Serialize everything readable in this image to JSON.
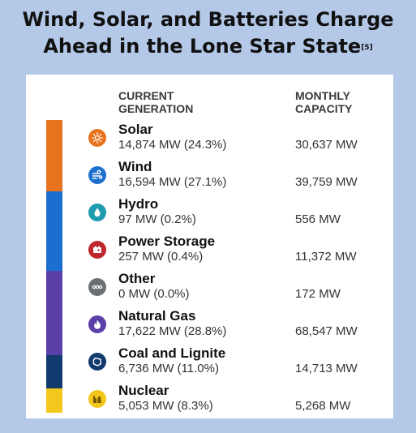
{
  "title": {
    "line1": "Wind, Solar, and Batteries Charge",
    "line2": "Ahead in the Lone Star State",
    "footnote": "[5]"
  },
  "headers": {
    "generation": "CURRENT\nGENERATION",
    "capacity": "MONTHLY\nCAPACITY"
  },
  "sources": [
    {
      "name": "Solar",
      "generation": "14,874 MW (24.3%)",
      "capacity": "30,637 MW",
      "icon": "sun-icon",
      "icon_color": "#e8731f"
    },
    {
      "name": "Wind",
      "generation": "16,594 MW (27.1%)",
      "capacity": "39,759 MW",
      "icon": "wind-icon",
      "icon_color": "#1c6fcf"
    },
    {
      "name": "Hydro",
      "generation": "97 MW (0.2%)",
      "capacity": "556 MW",
      "icon": "water-drop-icon",
      "icon_color": "#1f9bb0"
    },
    {
      "name": "Power Storage",
      "generation": "257 MW (0.4%)",
      "capacity": "11,372 MW",
      "icon": "battery-icon",
      "icon_color": "#c0272d"
    },
    {
      "name": "Other",
      "generation": "0 MW (0.0%)",
      "capacity": "172 MW",
      "icon": "dots-icon",
      "icon_color": "#6b6e73"
    },
    {
      "name": "Natural Gas",
      "generation": "17,622 MW (28.8%)",
      "capacity": "68,547 MW",
      "icon": "flame-icon",
      "icon_color": "#5b3fa8"
    },
    {
      "name": "Coal and Lignite",
      "generation": "6,736 MW (11.0%)",
      "capacity": "14,713 MW",
      "icon": "coal-icon",
      "icon_color": "#123a6e"
    },
    {
      "name": "Nuclear",
      "generation": "5,053 MW (8.3%)",
      "capacity": "5,268 MW",
      "icon": "nuclear-plant-icon",
      "icon_color": "#f4c71c"
    }
  ],
  "mix_bar": [
    {
      "name": "Solar",
      "share_pct": 24.3,
      "color": "#e8731f"
    },
    {
      "name": "Wind",
      "share_pct": 27.1,
      "color": "#1c6fcf"
    },
    {
      "name": "Natural Gas",
      "share_pct": 28.8,
      "color": "#5b3fa8"
    },
    {
      "name": "Coal and Lignite",
      "share_pct": 11.0,
      "color": "#123a6e"
    },
    {
      "name": "Nuclear",
      "share_pct": 8.3,
      "color": "#f4c71c"
    }
  ]
}
